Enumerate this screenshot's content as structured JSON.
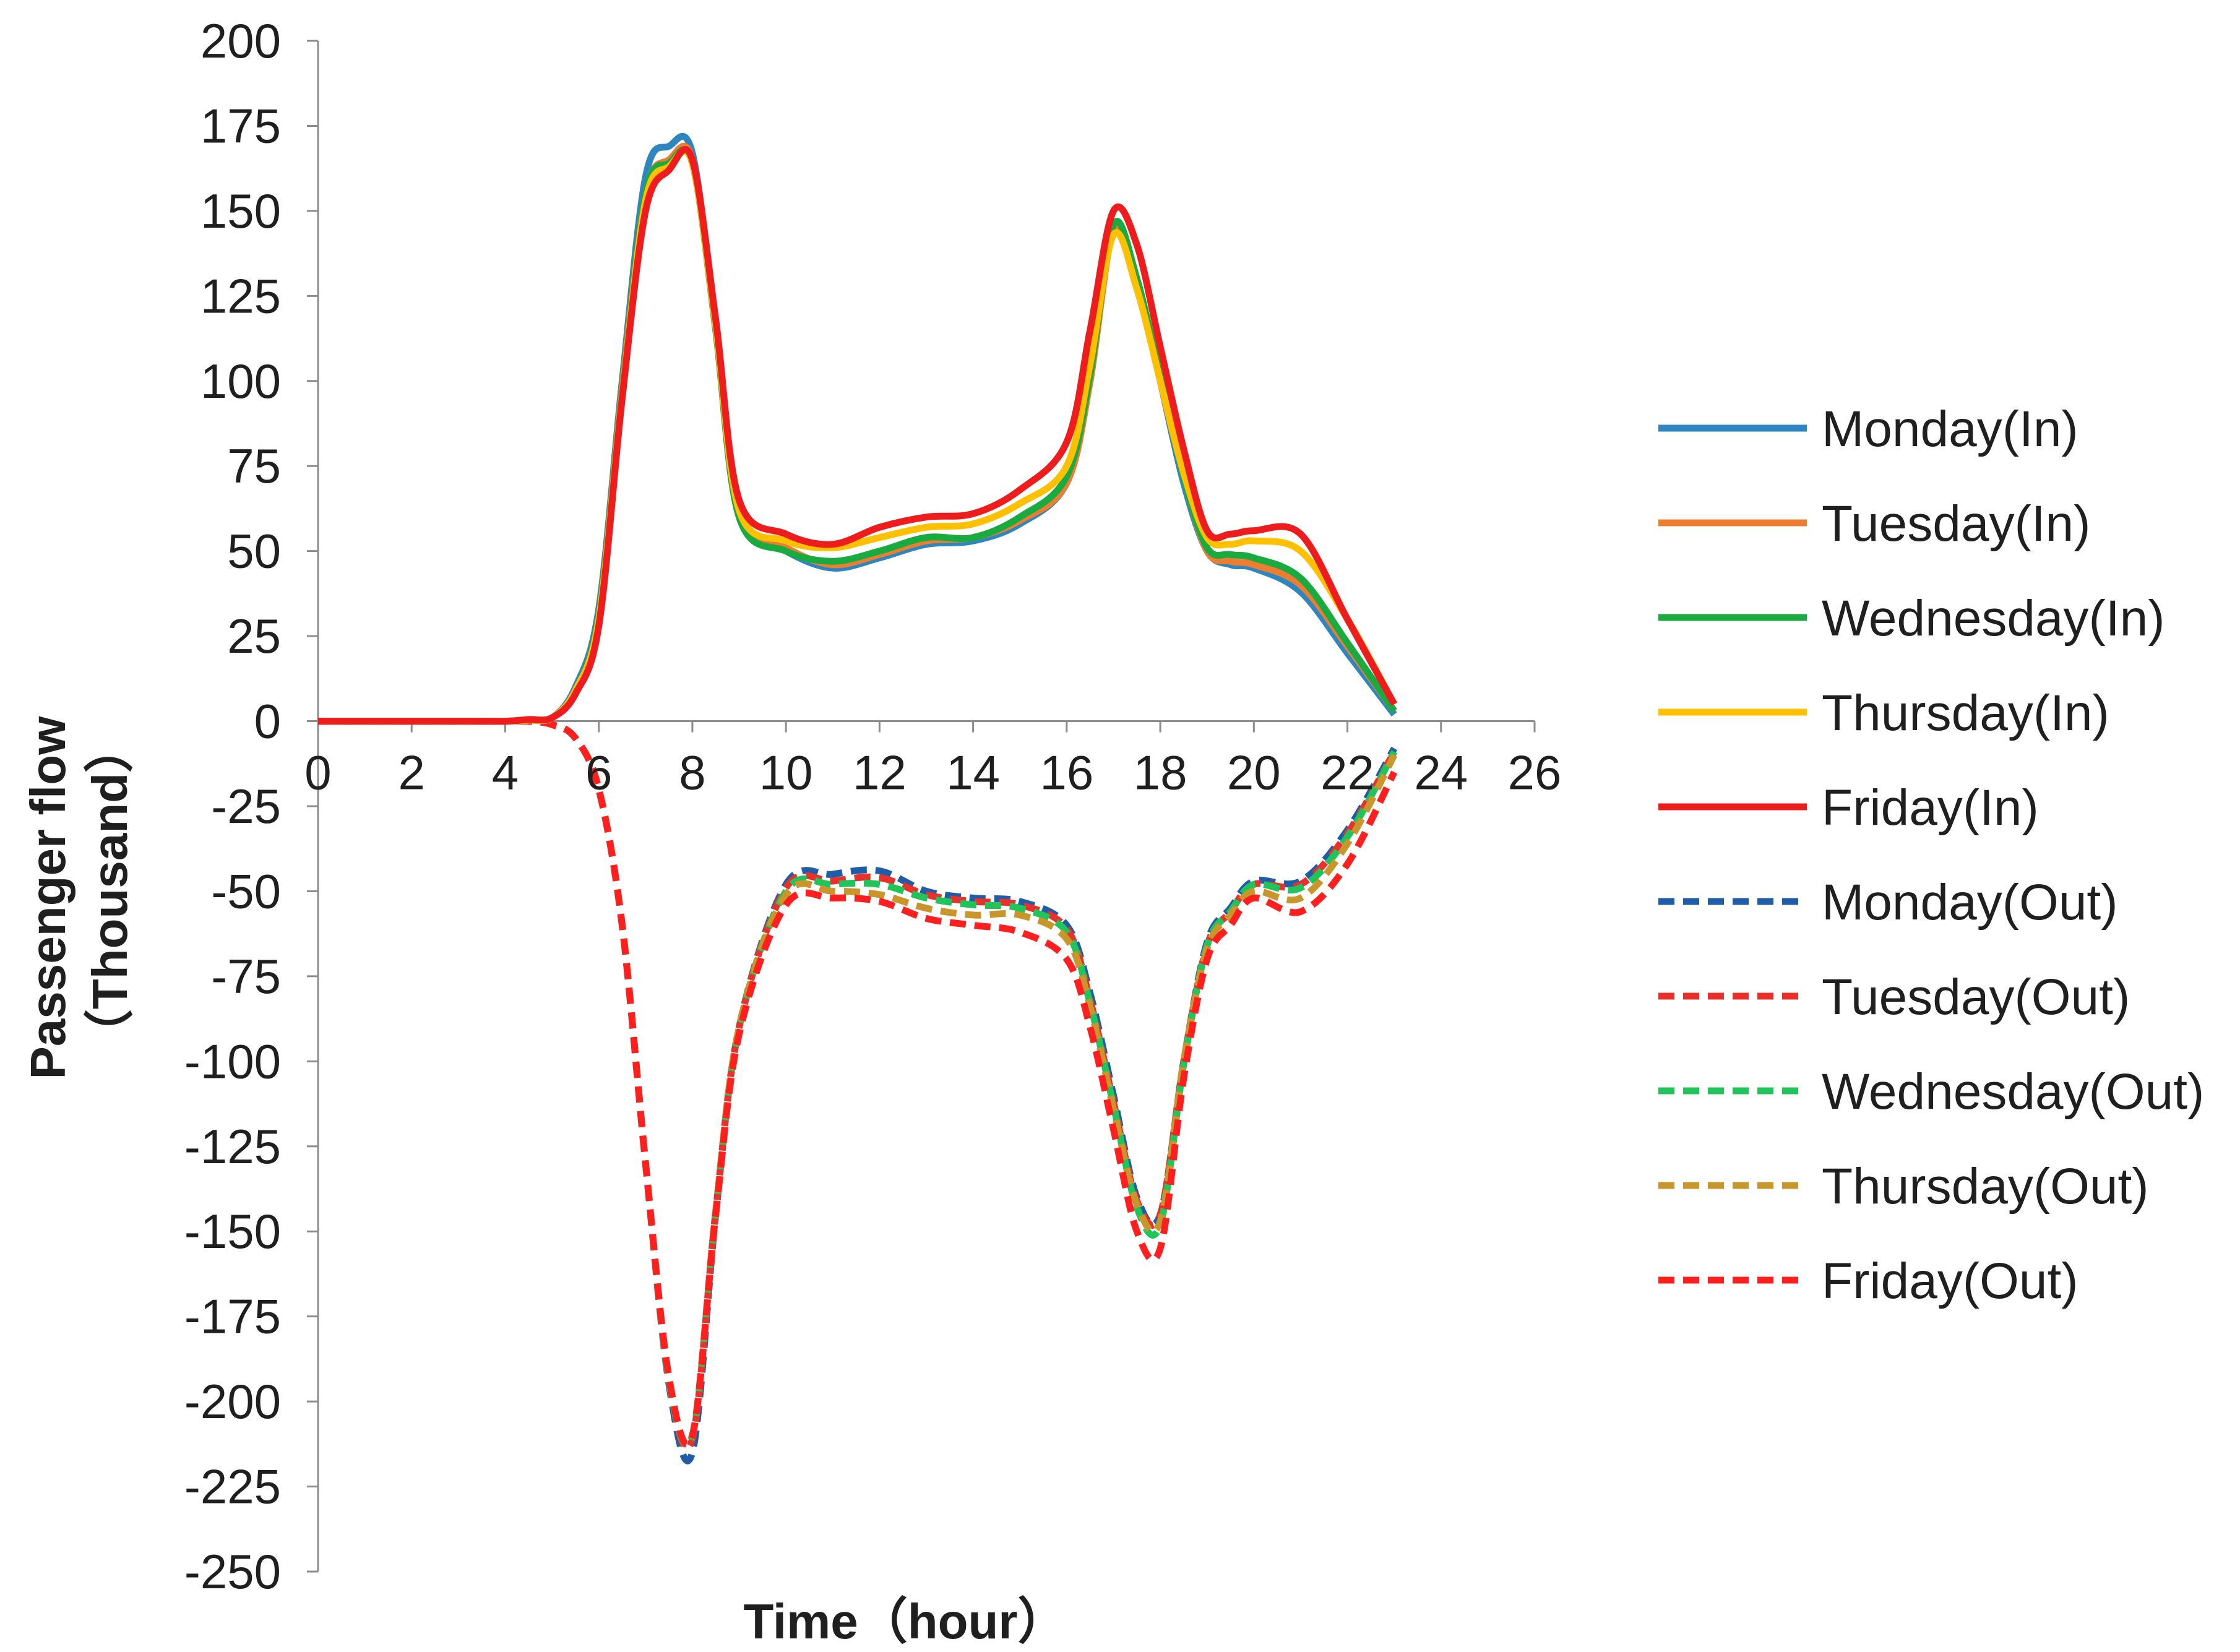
{
  "chart_data": {
    "type": "line",
    "title": "",
    "xlabel": "Time（hour）",
    "ylabel": "Passenger flow",
    "ylabel_line2": "（Thousand）",
    "xlim": [
      0,
      26
    ],
    "ylim": [
      -250,
      200
    ],
    "xticks": [
      0,
      2,
      4,
      6,
      8,
      10,
      12,
      14,
      16,
      18,
      20,
      22,
      24,
      26
    ],
    "yticks": [
      200,
      175,
      150,
      125,
      100,
      75,
      50,
      25,
      0,
      -25,
      -50,
      -75,
      -100,
      -125,
      -150,
      -175,
      -200,
      -225,
      -250
    ],
    "x": [
      0,
      1,
      2,
      3,
      4,
      4.5,
      5,
      5.5,
      6,
      6.5,
      7,
      7.5,
      8,
      8.5,
      9,
      10,
      11,
      12,
      13,
      14,
      15,
      16,
      16.5,
      17,
      17.5,
      18,
      18.5,
      19,
      19.5,
      20,
      21,
      22,
      23
    ],
    "legend_position": "right",
    "series": [
      {
        "name": "Monday(In)",
        "color": "#2e86c1",
        "dash": "solid",
        "values": [
          0,
          0,
          0,
          0,
          0,
          0.3,
          1,
          10,
          33,
          100,
          160,
          169,
          167,
          115,
          60,
          50,
          45,
          48,
          52,
          53,
          58,
          70,
          100,
          145,
          130,
          100,
          70,
          50,
          46,
          45,
          38,
          20,
          2
        ]
      },
      {
        "name": "Tuesday(In)",
        "color": "#ed7d31",
        "dash": "solid",
        "values": [
          0,
          0,
          0,
          0,
          0,
          0.3,
          1,
          9,
          31,
          98,
          155,
          165,
          165,
          116,
          61,
          51,
          46,
          49,
          53,
          54,
          59,
          70,
          100,
          144,
          128,
          100,
          72,
          50,
          47,
          46,
          40,
          22,
          3
        ]
      },
      {
        "name": "Wednesday(In)",
        "color": "#1aab40",
        "dash": "solid",
        "values": [
          0,
          0,
          0,
          0,
          0,
          0.3,
          1,
          9,
          31,
          97,
          155,
          164,
          164,
          115,
          60,
          50,
          47,
          50,
          54,
          54,
          60,
          72,
          102,
          146,
          130,
          101,
          72,
          51,
          49,
          48,
          42,
          23,
          3
        ]
      },
      {
        "name": "Thursday(In)",
        "color": "#ffc000",
        "dash": "solid",
        "values": [
          0,
          0,
          0,
          0,
          0,
          0.3,
          1,
          9,
          30,
          96,
          153,
          163,
          164,
          116,
          62,
          53,
          51,
          54,
          57,
          58,
          64,
          75,
          105,
          143,
          127,
          100,
          73,
          54,
          52,
          53,
          50,
          30,
          5
        ]
      },
      {
        "name": "Friday(In)",
        "color": "#ee1c1c",
        "dash": "solid",
        "values": [
          0,
          0,
          0,
          0,
          0,
          0.5,
          1,
          8,
          28,
          95,
          150,
          162,
          165,
          118,
          65,
          55,
          52,
          57,
          60,
          61,
          68,
          82,
          115,
          150,
          140,
          110,
          80,
          56,
          55,
          56,
          55,
          30,
          5
        ]
      },
      {
        "name": "Monday(Out)",
        "color": "#1f5da8",
        "dash": "dashed",
        "values": [
          0,
          0,
          0,
          0,
          0,
          0,
          -1,
          -5,
          -20,
          -60,
          -130,
          -195,
          -215,
          -145,
          -90,
          -48,
          -45,
          -44,
          -50,
          -52,
          -53,
          -60,
          -80,
          -110,
          -140,
          -145,
          -100,
          -65,
          -55,
          -47,
          -47,
          -32,
          -8
        ]
      },
      {
        "name": "Tuesday(Out)",
        "color": "#e8312a",
        "dash": "dashed",
        "values": [
          0,
          0,
          0,
          0,
          0,
          0,
          -1,
          -5,
          -20,
          -60,
          -130,
          -194,
          -211,
          -144,
          -90,
          -49,
          -47,
          -46,
          -51,
          -53,
          -54,
          -61,
          -82,
          -112,
          -141,
          -145,
          -100,
          -66,
          -56,
          -48,
          -48,
          -33,
          -9
        ]
      },
      {
        "name": "Wednesday(Out)",
        "color": "#21c45a",
        "dash": "dashed",
        "values": [
          0,
          0,
          0,
          0,
          0,
          0,
          -1,
          -5,
          -20,
          -60,
          -130,
          -194,
          -210,
          -144,
          -90,
          -50,
          -48,
          -48,
          -52,
          -54,
          -55,
          -62,
          -83,
          -113,
          -143,
          -148,
          -101,
          -66,
          -56,
          -48,
          -49,
          -34,
          -9
        ]
      },
      {
        "name": "Thursday(Out)",
        "color": "#c9962c",
        "dash": "dashed",
        "values": [
          0,
          0,
          0,
          0,
          0,
          0,
          -1,
          -5,
          -20,
          -60,
          -130,
          -193,
          -210,
          -144,
          -90,
          -51,
          -50,
          -51,
          -55,
          -57,
          -57,
          -64,
          -84,
          -114,
          -142,
          -147,
          -100,
          -67,
          -57,
          -50,
          -52,
          -36,
          -10
        ]
      },
      {
        "name": "Friday(Out)",
        "color": "#ff1f1f",
        "dash": "dashed",
        "values": [
          0,
          0,
          0,
          0,
          0,
          0,
          -1,
          -5,
          -20,
          -60,
          -130,
          -193,
          -210,
          -145,
          -92,
          -54,
          -52,
          -53,
          -58,
          -60,
          -62,
          -70,
          -90,
          -120,
          -150,
          -155,
          -105,
          -70,
          -60,
          -52,
          -56,
          -42,
          -15
        ]
      }
    ]
  }
}
